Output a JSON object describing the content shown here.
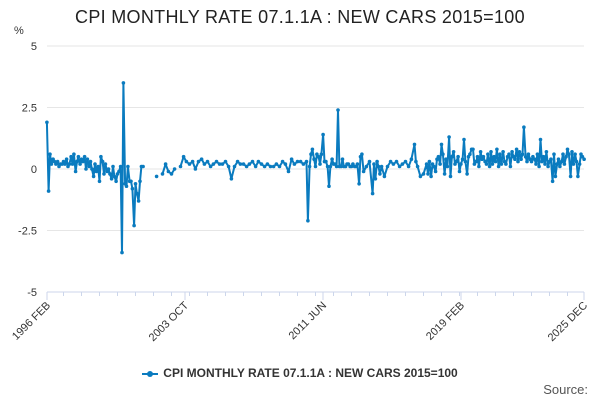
{
  "chart_data": {
    "type": "line",
    "title": "CPI MONTHLY RATE 07.1.1A : NEW CARS 2015=100",
    "ylabel": "%",
    "xlabel": "",
    "ylim": [
      -5,
      5
    ],
    "yticks": [
      {
        "value": 5,
        "label": "5"
      },
      {
        "value": 2.5,
        "label": "2.5"
      },
      {
        "value": 0,
        "label": "0"
      },
      {
        "value": -2.5,
        "label": "-2.5"
      },
      {
        "value": -5,
        "label": "-5"
      }
    ],
    "xrange": [
      1996.0833,
      2025.9167
    ],
    "xticks": [
      {
        "value": 1996.0833,
        "label": "1996 FEB"
      },
      {
        "value": 2003.75,
        "label": "2003 OCT"
      },
      {
        "value": 2011.4167,
        "label": "2011 JUN"
      },
      {
        "value": 2019.0833,
        "label": "2019 FEB"
      },
      {
        "value": 2025.9167,
        "label": "2025 DEC"
      }
    ],
    "grid": true,
    "legend_position": "bottom",
    "series": [
      {
        "name": "CPI MONTHLY RATE 07.1.1A : NEW CARS 2015=100",
        "color": "#0a7bbf",
        "points": [
          [
            1996.08,
            1.9
          ],
          [
            1996.17,
            -0.9
          ],
          [
            1996.25,
            0.6
          ],
          [
            1996.33,
            0.2
          ],
          [
            1996.42,
            0.4
          ],
          [
            1996.5,
            0.3
          ],
          [
            1996.58,
            0.2
          ],
          [
            1996.67,
            0.3
          ],
          [
            1996.75,
            0.1
          ],
          [
            1996.83,
            0.2
          ],
          [
            1996.92,
            0.2
          ],
          [
            1997.0,
            0.3
          ],
          [
            1997.08,
            0.2
          ],
          [
            1997.17,
            0.4
          ],
          [
            1997.25,
            0.1
          ],
          [
            1997.33,
            0.2
          ],
          [
            1997.42,
            0.5
          ],
          [
            1997.5,
            0.2
          ],
          [
            1997.58,
            0.6
          ],
          [
            1997.67,
            -0.1
          ],
          [
            1997.75,
            0.3
          ],
          [
            1997.83,
            0.5
          ],
          [
            1997.92,
            0.2
          ],
          [
            1998.0,
            0.4
          ],
          [
            1998.08,
            0.3
          ],
          [
            1998.17,
            0.5
          ],
          [
            1998.25,
            0.0
          ],
          [
            1998.33,
            0.4
          ],
          [
            1998.42,
            0.1
          ],
          [
            1998.5,
            0.3
          ],
          [
            1998.58,
            0.0
          ],
          [
            1998.67,
            -0.3
          ],
          [
            1998.75,
            0.2
          ],
          [
            1998.83,
            -0.1
          ],
          [
            1998.92,
            0.1
          ],
          [
            1999.0,
            -0.5
          ],
          [
            1999.08,
            0.5
          ],
          [
            1999.17,
            0.3
          ],
          [
            1999.25,
            -0.2
          ],
          [
            1999.33,
            0.2
          ],
          [
            1999.42,
            -0.1
          ],
          [
            1999.5,
            0.0
          ],
          [
            1999.58,
            -0.2
          ],
          [
            1999.67,
            -0.4
          ],
          [
            1999.75,
            0.1
          ],
          [
            1999.83,
            -0.3
          ],
          [
            1999.92,
            -0.5
          ],
          [
            2000.0,
            -0.2
          ],
          [
            2000.08,
            -0.1
          ],
          [
            2000.17,
            0.1
          ],
          [
            2000.25,
            -3.4
          ],
          [
            2000.33,
            3.5
          ],
          [
            2000.42,
            -0.6
          ],
          [
            2000.5,
            -0.7
          ],
          [
            2000.58,
            0.1
          ],
          [
            2000.67,
            -0.5
          ],
          [
            2000.75,
            -0.5
          ],
          [
            2000.83,
            -0.8
          ],
          [
            2000.92,
            -2.3
          ],
          [
            2001.0,
            -0.6
          ],
          [
            2001.08,
            -1.0
          ],
          [
            2001.17,
            -1.3
          ],
          [
            2001.25,
            -0.5
          ],
          [
            2001.33,
            0.1
          ],
          [
            2001.42,
            0.1
          ],
          [
            2002.17,
            -0.3
          ],
          [
            2002.5,
            -0.2
          ],
          [
            2002.67,
            0.2
          ],
          [
            2002.83,
            -0.1
          ],
          [
            2003.0,
            -0.2
          ],
          [
            2003.17,
            0.0
          ],
          [
            2003.5,
            0.1
          ],
          [
            2003.67,
            0.5
          ],
          [
            2003.83,
            0.3
          ],
          [
            2004.0,
            0.2
          ],
          [
            2004.17,
            0.3
          ],
          [
            2004.33,
            0.0
          ],
          [
            2004.5,
            0.3
          ],
          [
            2004.67,
            0.4
          ],
          [
            2004.83,
            0.2
          ],
          [
            2005.0,
            0.3
          ],
          [
            2005.17,
            0.1
          ],
          [
            2005.33,
            0.2
          ],
          [
            2005.5,
            0.3
          ],
          [
            2005.67,
            0.2
          ],
          [
            2005.83,
            0.2
          ],
          [
            2006.0,
            0.3
          ],
          [
            2006.17,
            0.1
          ],
          [
            2006.33,
            -0.4
          ],
          [
            2006.5,
            0.1
          ],
          [
            2006.67,
            0.3
          ],
          [
            2006.83,
            0.2
          ],
          [
            2007.0,
            0.2
          ],
          [
            2007.17,
            0.1
          ],
          [
            2007.33,
            0.2
          ],
          [
            2007.5,
            0.3
          ],
          [
            2007.67,
            0.1
          ],
          [
            2007.83,
            0.3
          ],
          [
            2008.0,
            0.2
          ],
          [
            2008.17,
            0.1
          ],
          [
            2008.33,
            0.2
          ],
          [
            2008.5,
            0.1
          ],
          [
            2008.67,
            0.1
          ],
          [
            2008.83,
            0.2
          ],
          [
            2009.0,
            0.1
          ],
          [
            2009.17,
            0.3
          ],
          [
            2009.33,
            0.2
          ],
          [
            2009.5,
            -0.1
          ],
          [
            2009.67,
            0.4
          ],
          [
            2009.83,
            0.2
          ],
          [
            2010.0,
            0.3
          ],
          [
            2010.17,
            0.3
          ],
          [
            2010.33,
            0.2
          ],
          [
            2010.5,
            0.3
          ],
          [
            2010.58,
            -2.1
          ],
          [
            2010.67,
            0.1
          ],
          [
            2010.75,
            0.6
          ],
          [
            2010.83,
            0.8
          ],
          [
            2010.92,
            0.4
          ],
          [
            2011.0,
            0.1
          ],
          [
            2011.08,
            0.6
          ],
          [
            2011.17,
            0.5
          ],
          [
            2011.25,
            0.2
          ],
          [
            2011.33,
            0.6
          ],
          [
            2011.42,
            1.4
          ],
          [
            2011.5,
            0.3
          ],
          [
            2011.58,
            0.3
          ],
          [
            2011.67,
            0.1
          ],
          [
            2011.75,
            -0.7
          ],
          [
            2011.83,
            0.1
          ],
          [
            2011.92,
            0.4
          ],
          [
            2012.0,
            0.2
          ],
          [
            2012.08,
            0.2
          ],
          [
            2012.17,
            0.1
          ],
          [
            2012.25,
            2.4
          ],
          [
            2012.33,
            0.1
          ],
          [
            2012.42,
            0.1
          ],
          [
            2012.5,
            0.4
          ],
          [
            2012.58,
            0.1
          ],
          [
            2012.67,
            0.1
          ],
          [
            2012.75,
            0.2
          ],
          [
            2012.83,
            0.2
          ],
          [
            2012.92,
            0.1
          ],
          [
            2013.0,
            0.1
          ],
          [
            2013.08,
            0.2
          ],
          [
            2013.17,
            0.1
          ],
          [
            2013.25,
            0.1
          ],
          [
            2013.33,
            0.2
          ],
          [
            2013.42,
            -0.6
          ],
          [
            2013.5,
            0.5
          ],
          [
            2013.58,
            0.6
          ],
          [
            2013.67,
            -0.1
          ],
          [
            2013.83,
            0.1
          ],
          [
            2014.0,
            0.3
          ],
          [
            2014.17,
            -1.0
          ],
          [
            2014.25,
            0.2
          ],
          [
            2014.33,
            -0.4
          ],
          [
            2014.42,
            0.3
          ],
          [
            2014.5,
            0.1
          ],
          [
            2014.58,
            -0.2
          ],
          [
            2014.67,
            0.1
          ],
          [
            2014.83,
            -0.3
          ],
          [
            2015.0,
            0.1
          ],
          [
            2015.17,
            0.3
          ],
          [
            2015.33,
            0.2
          ],
          [
            2015.5,
            0.3
          ],
          [
            2015.67,
            0.1
          ],
          [
            2015.83,
            0.2
          ],
          [
            2016.0,
            0.3
          ],
          [
            2016.17,
            0.1
          ],
          [
            2016.33,
            0.4
          ],
          [
            2016.5,
            1.0
          ],
          [
            2016.58,
            0.3
          ],
          [
            2016.67,
            0.1
          ],
          [
            2016.83,
            -0.3
          ],
          [
            2017.0,
            -0.2
          ],
          [
            2017.17,
            0.2
          ],
          [
            2017.25,
            -0.2
          ],
          [
            2017.33,
            0.3
          ],
          [
            2017.42,
            -0.3
          ],
          [
            2017.5,
            0.2
          ],
          [
            2017.58,
            0.1
          ],
          [
            2017.67,
            -0.1
          ],
          [
            2017.75,
            0.4
          ],
          [
            2017.83,
            0.5
          ],
          [
            2017.92,
            0.2
          ],
          [
            2018.0,
            1.0
          ],
          [
            2018.08,
            0.6
          ],
          [
            2018.17,
            -0.2
          ],
          [
            2018.25,
            0.4
          ],
          [
            2018.33,
            0.1
          ],
          [
            2018.42,
            1.3
          ],
          [
            2018.5,
            -0.3
          ],
          [
            2018.58,
            0.5
          ],
          [
            2018.67,
            0.7
          ],
          [
            2018.75,
            0.2
          ],
          [
            2018.83,
            0.3
          ],
          [
            2018.92,
            0.5
          ],
          [
            2019.0,
            -0.1
          ],
          [
            2019.08,
            0.2
          ],
          [
            2019.17,
            0.4
          ],
          [
            2019.25,
            1.2
          ],
          [
            2019.33,
            0.3
          ],
          [
            2019.42,
            -0.2
          ],
          [
            2019.5,
            0.5
          ],
          [
            2019.58,
            0.6
          ],
          [
            2019.67,
            0.8
          ],
          [
            2019.75,
            0.8
          ],
          [
            2019.83,
            0.2
          ],
          [
            2019.92,
            0.3
          ],
          [
            2020.0,
            0.5
          ],
          [
            2020.08,
            0.1
          ],
          [
            2020.17,
            0.7
          ],
          [
            2020.25,
            0.4
          ],
          [
            2020.33,
            0.5
          ],
          [
            2020.42,
            0.3
          ],
          [
            2020.5,
            0.2
          ],
          [
            2020.58,
            0.6
          ],
          [
            2020.67,
            0.1
          ],
          [
            2020.75,
            0.7
          ],
          [
            2020.83,
            0.2
          ],
          [
            2020.92,
            0.5
          ],
          [
            2021.0,
            0.3
          ],
          [
            2021.08,
            0.8
          ],
          [
            2021.17,
            0.1
          ],
          [
            2021.25,
            0.6
          ],
          [
            2021.33,
            0.2
          ],
          [
            2021.42,
            0.7
          ],
          [
            2021.5,
            0.3
          ],
          [
            2021.58,
            0.2
          ],
          [
            2021.67,
            0.5
          ],
          [
            2021.75,
            0.6
          ],
          [
            2021.83,
            0.1
          ],
          [
            2021.92,
            0.7
          ],
          [
            2022.0,
            0.5
          ],
          [
            2022.08,
            0.4
          ],
          [
            2022.17,
            0.8
          ],
          [
            2022.25,
            0.3
          ],
          [
            2022.33,
            0.7
          ],
          [
            2022.42,
            0.4
          ],
          [
            2022.5,
            0.6
          ],
          [
            2022.58,
            1.7
          ],
          [
            2022.67,
            0.5
          ],
          [
            2022.75,
            0.3
          ],
          [
            2022.83,
            0.6
          ],
          [
            2022.92,
            0.4
          ],
          [
            2023.0,
            0.3
          ],
          [
            2023.08,
            0.5
          ],
          [
            2023.17,
            0.4
          ],
          [
            2023.25,
            0.2
          ],
          [
            2023.33,
            0.6
          ],
          [
            2023.42,
            0.1
          ],
          [
            2023.5,
            1.2
          ],
          [
            2023.58,
            0.3
          ],
          [
            2023.67,
            0.5
          ],
          [
            2023.75,
            0.2
          ],
          [
            2023.83,
            0.7
          ],
          [
            2023.92,
            0.1
          ],
          [
            2024.0,
            0.3
          ],
          [
            2024.08,
            0.4
          ],
          [
            2024.17,
            -0.5
          ],
          [
            2024.25,
            0.6
          ],
          [
            2024.33,
            -0.3
          ],
          [
            2024.42,
            0.2
          ],
          [
            2024.5,
            0.4
          ],
          [
            2024.58,
            0.1
          ],
          [
            2024.67,
            0.3
          ],
          [
            2024.75,
            0.6
          ],
          [
            2024.83,
            0.2
          ],
          [
            2024.92,
            0.5
          ],
          [
            2025.0,
            0.8
          ],
          [
            2025.08,
            0.6
          ],
          [
            2025.17,
            -0.3
          ],
          [
            2025.25,
            0.7
          ],
          [
            2025.33,
            0.2
          ],
          [
            2025.42,
            0.6
          ],
          [
            2025.5,
            0.3
          ],
          [
            2025.58,
            -0.3
          ],
          [
            2025.67,
            0.2
          ],
          [
            2025.75,
            0.6
          ],
          [
            2025.83,
            0.5
          ],
          [
            2025.92,
            0.4
          ]
        ]
      }
    ]
  },
  "source_label": "Source:"
}
